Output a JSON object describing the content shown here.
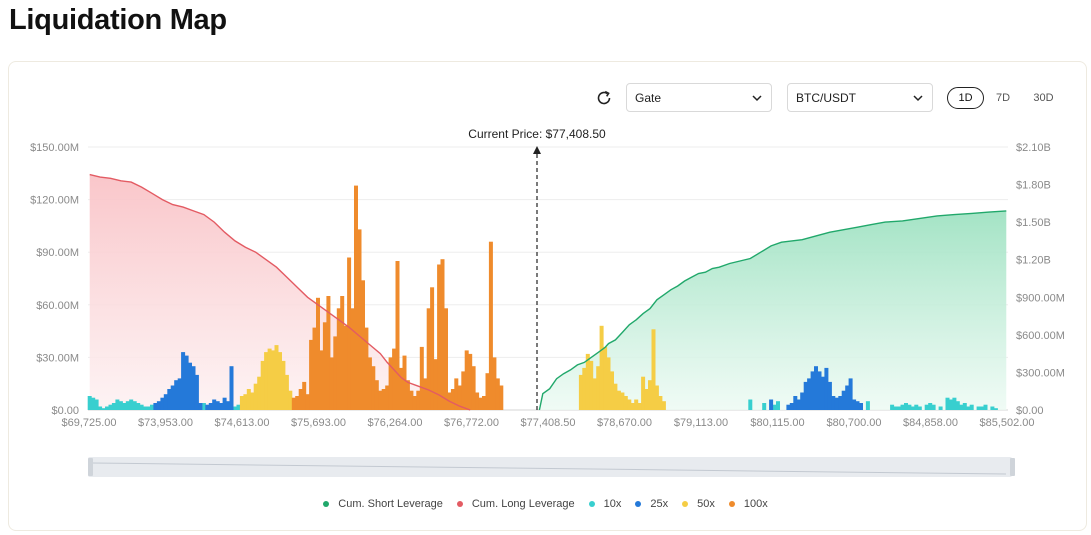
{
  "page": {
    "title": "Liquidation Map"
  },
  "controls": {
    "exchange": "Gate",
    "pair": "BTC/USDT",
    "timeframes": [
      {
        "label": "1D",
        "active": true
      },
      {
        "label": "7D",
        "active": false
      },
      {
        "label": "30D",
        "active": false
      }
    ]
  },
  "colors": {
    "short": "#21a86b",
    "long": "#e35b63",
    "x10": "#38cfcf",
    "x25": "#2479d9",
    "x50": "#f5cd45",
    "x100": "#ef8b2c"
  },
  "icons": {
    "refresh": "refresh-icon",
    "dropdown": "chevron-down-icon"
  },
  "chart_data": {
    "type": "bar",
    "current_price_label": "Current Price: $77,408.50",
    "x_tick_labels": [
      "$69,725.00",
      "$73,953.00",
      "$74,613.00",
      "$75,693.00",
      "$76,264.00",
      "$76,772.00",
      "$77,408.50",
      "$78,670.00",
      "$79,113.00",
      "$80,115.00",
      "$80,700.00",
      "$84,858.00",
      "$85,502.00"
    ],
    "y_left": {
      "ticks": [
        "$0.00",
        "$30.00M",
        "$60.00M",
        "$90.00M",
        "$120.00M",
        "$150.00M"
      ],
      "range": [
        0,
        150
      ]
    },
    "y_right": {
      "ticks": [
        "$0.00",
        "$300.00M",
        "$600.00M",
        "$900.00M",
        "$1.20B",
        "$1.50B",
        "$1.80B",
        "$2.10B"
      ],
      "range": [
        0,
        2100
      ]
    },
    "grid": true,
    "legend_position": "bottom",
    "series": [
      {
        "name": "Cum. Short Leverage",
        "type": "area",
        "axis": "right",
        "points": [
          [
            130,
            0
          ],
          [
            131,
            130
          ],
          [
            133,
            170
          ],
          [
            135,
            250
          ],
          [
            137,
            290
          ],
          [
            139,
            320
          ],
          [
            141,
            360
          ],
          [
            143,
            380
          ],
          [
            145,
            420
          ],
          [
            147,
            460
          ],
          [
            149,
            500
          ],
          [
            150,
            530
          ],
          [
            152,
            560
          ],
          [
            154,
            620
          ],
          [
            156,
            680
          ],
          [
            158,
            720
          ],
          [
            160,
            770
          ],
          [
            162,
            810
          ],
          [
            164,
            880
          ],
          [
            166,
            920
          ],
          [
            168,
            960
          ],
          [
            170,
            990
          ],
          [
            172,
            1030
          ],
          [
            174,
            1060
          ],
          [
            176,
            1090
          ],
          [
            178,
            1100
          ],
          [
            180,
            1130
          ],
          [
            182,
            1140
          ],
          [
            185,
            1170
          ],
          [
            188,
            1190
          ],
          [
            191,
            1210
          ],
          [
            194,
            1260
          ],
          [
            197,
            1310
          ],
          [
            200,
            1340
          ],
          [
            203,
            1350
          ],
          [
            206,
            1360
          ],
          [
            210,
            1390
          ],
          [
            214,
            1420
          ],
          [
            218,
            1440
          ],
          [
            222,
            1460
          ],
          [
            226,
            1480
          ],
          [
            230,
            1500
          ],
          [
            235,
            1510
          ],
          [
            240,
            1530
          ],
          [
            245,
            1550
          ],
          [
            250,
            1560
          ],
          [
            255,
            1570
          ],
          [
            260,
            1580
          ],
          [
            265,
            1590
          ]
        ]
      },
      {
        "name": "Cum. Long Leverage",
        "type": "area",
        "axis": "right",
        "points": [
          [
            0,
            1880
          ],
          [
            3,
            1860
          ],
          [
            6,
            1850
          ],
          [
            9,
            1830
          ],
          [
            12,
            1820
          ],
          [
            15,
            1780
          ],
          [
            18,
            1730
          ],
          [
            21,
            1680
          ],
          [
            24,
            1640
          ],
          [
            27,
            1620
          ],
          [
            30,
            1590
          ],
          [
            33,
            1560
          ],
          [
            36,
            1500
          ],
          [
            39,
            1420
          ],
          [
            42,
            1350
          ],
          [
            45,
            1300
          ],
          [
            48,
            1260
          ],
          [
            51,
            1200
          ],
          [
            54,
            1140
          ],
          [
            57,
            1060
          ],
          [
            60,
            980
          ],
          [
            63,
            900
          ],
          [
            66,
            840
          ],
          [
            69,
            780
          ],
          [
            72,
            720
          ],
          [
            75,
            660
          ],
          [
            78,
            590
          ],
          [
            81,
            520
          ],
          [
            84,
            450
          ],
          [
            86,
            380
          ],
          [
            88,
            320
          ],
          [
            90,
            260
          ],
          [
            92,
            220
          ],
          [
            95,
            190
          ],
          [
            98,
            160
          ],
          [
            101,
            120
          ],
          [
            104,
            70
          ],
          [
            107,
            30
          ],
          [
            110,
            0
          ]
        ]
      },
      {
        "name": "10x",
        "values": [
          [
            0,
            8
          ],
          [
            1,
            7
          ],
          [
            2,
            6
          ],
          [
            3,
            2
          ],
          [
            4,
            1
          ],
          [
            5,
            2
          ],
          [
            6,
            3
          ],
          [
            7,
            4
          ],
          [
            8,
            6
          ],
          [
            9,
            5
          ],
          [
            10,
            4
          ],
          [
            11,
            5
          ],
          [
            12,
            6
          ],
          [
            13,
            5
          ],
          [
            14,
            4
          ],
          [
            15,
            3
          ],
          [
            16,
            2
          ],
          [
            17,
            2
          ],
          [
            18,
            3
          ],
          [
            33,
            4
          ],
          [
            42,
            2
          ],
          [
            43,
            3
          ],
          [
            54,
            3
          ],
          [
            64,
            2
          ],
          [
            69,
            2
          ],
          [
            86,
            2
          ],
          [
            88,
            2
          ],
          [
            191,
            6
          ],
          [
            195,
            4
          ],
          [
            198,
            3
          ],
          [
            199,
            5
          ],
          [
            211,
            4
          ],
          [
            212,
            3
          ],
          [
            225,
            5
          ],
          [
            232,
            3
          ],
          [
            233,
            2
          ],
          [
            234,
            2
          ],
          [
            235,
            3
          ],
          [
            236,
            4
          ],
          [
            237,
            3
          ],
          [
            238,
            2
          ],
          [
            239,
            3
          ],
          [
            240,
            2
          ],
          [
            242,
            3
          ],
          [
            243,
            4
          ],
          [
            244,
            3
          ],
          [
            246,
            2
          ],
          [
            248,
            7
          ],
          [
            249,
            6
          ],
          [
            250,
            7
          ],
          [
            251,
            5
          ],
          [
            252,
            3
          ],
          [
            253,
            4
          ],
          [
            254,
            2
          ],
          [
            255,
            3
          ],
          [
            257,
            2
          ],
          [
            258,
            2
          ],
          [
            259,
            3
          ],
          [
            261,
            2
          ],
          [
            262,
            1
          ]
        ]
      },
      {
        "name": "25x",
        "values": [
          [
            19,
            4
          ],
          [
            20,
            5
          ],
          [
            21,
            7
          ],
          [
            22,
            9
          ],
          [
            23,
            12
          ],
          [
            24,
            14
          ],
          [
            25,
            17
          ],
          [
            26,
            18
          ],
          [
            27,
            33
          ],
          [
            28,
            31
          ],
          [
            29,
            27
          ],
          [
            30,
            25
          ],
          [
            31,
            20
          ],
          [
            32,
            4
          ],
          [
            34,
            3
          ],
          [
            35,
            4
          ],
          [
            36,
            6
          ],
          [
            37,
            5
          ],
          [
            38,
            4
          ],
          [
            39,
            7
          ],
          [
            40,
            5
          ],
          [
            41,
            25
          ],
          [
            197,
            6
          ],
          [
            202,
            3
          ],
          [
            203,
            4
          ],
          [
            204,
            8
          ],
          [
            205,
            6
          ],
          [
            206,
            10
          ],
          [
            207,
            16
          ],
          [
            208,
            18
          ],
          [
            209,
            22
          ],
          [
            210,
            25
          ],
          [
            211,
            22
          ],
          [
            212,
            19
          ],
          [
            213,
            24
          ],
          [
            214,
            16
          ],
          [
            215,
            8
          ],
          [
            216,
            7
          ],
          [
            217,
            8
          ],
          [
            218,
            11
          ],
          [
            219,
            14
          ],
          [
            220,
            18
          ],
          [
            221,
            6
          ],
          [
            222,
            5
          ],
          [
            223,
            4
          ]
        ]
      },
      {
        "name": "50x",
        "values": [
          [
            44,
            8
          ],
          [
            45,
            9
          ],
          [
            46,
            12
          ],
          [
            47,
            10
          ],
          [
            48,
            15
          ],
          [
            49,
            19
          ],
          [
            50,
            28
          ],
          [
            51,
            33
          ],
          [
            52,
            35
          ],
          [
            53,
            34
          ],
          [
            54,
            37
          ],
          [
            55,
            33
          ],
          [
            56,
            28
          ],
          [
            57,
            20
          ],
          [
            58,
            11
          ],
          [
            142,
            20
          ],
          [
            143,
            24
          ],
          [
            144,
            32
          ],
          [
            145,
            28
          ],
          [
            146,
            18
          ],
          [
            147,
            25
          ],
          [
            148,
            48
          ],
          [
            149,
            36
          ],
          [
            150,
            30
          ],
          [
            151,
            22
          ],
          [
            152,
            15
          ],
          [
            153,
            11
          ],
          [
            154,
            10
          ],
          [
            155,
            8
          ],
          [
            156,
            6
          ],
          [
            157,
            4
          ],
          [
            158,
            6
          ],
          [
            159,
            4
          ],
          [
            160,
            19
          ],
          [
            161,
            12
          ],
          [
            162,
            17
          ],
          [
            163,
            46
          ],
          [
            164,
            14
          ],
          [
            165,
            8
          ],
          [
            166,
            5
          ]
        ]
      },
      {
        "name": "100x",
        "values": [
          [
            59,
            7
          ],
          [
            60,
            8
          ],
          [
            61,
            12
          ],
          [
            62,
            16
          ],
          [
            63,
            9
          ],
          [
            64,
            40
          ],
          [
            65,
            47
          ],
          [
            66,
            64
          ],
          [
            67,
            34
          ],
          [
            68,
            50
          ],
          [
            69,
            65
          ],
          [
            70,
            30
          ],
          [
            71,
            42
          ],
          [
            72,
            58
          ],
          [
            73,
            65
          ],
          [
            74,
            48
          ],
          [
            75,
            87
          ],
          [
            76,
            58
          ],
          [
            77,
            128
          ],
          [
            78,
            103
          ],
          [
            79,
            74
          ],
          [
            80,
            47
          ],
          [
            81,
            30
          ],
          [
            82,
            25
          ],
          [
            83,
            17
          ],
          [
            84,
            11
          ],
          [
            85,
            12
          ],
          [
            86,
            14
          ],
          [
            87,
            30
          ],
          [
            88,
            35
          ],
          [
            89,
            85
          ],
          [
            90,
            24
          ],
          [
            91,
            31
          ],
          [
            92,
            17
          ],
          [
            93,
            11
          ],
          [
            94,
            8
          ],
          [
            95,
            11
          ],
          [
            96,
            36
          ],
          [
            97,
            18
          ],
          [
            98,
            58
          ],
          [
            99,
            70
          ],
          [
            100,
            29
          ],
          [
            101,
            83
          ],
          [
            102,
            86
          ],
          [
            103,
            58
          ],
          [
            104,
            10
          ],
          [
            105,
            12
          ],
          [
            106,
            18
          ],
          [
            107,
            14
          ],
          [
            108,
            22
          ],
          [
            109,
            34
          ],
          [
            110,
            32
          ],
          [
            111,
            25
          ],
          [
            112,
            10
          ],
          [
            113,
            7
          ],
          [
            114,
            8
          ],
          [
            115,
            21
          ],
          [
            116,
            96
          ],
          [
            117,
            30
          ],
          [
            118,
            18
          ],
          [
            119,
            14
          ]
        ]
      }
    ]
  }
}
